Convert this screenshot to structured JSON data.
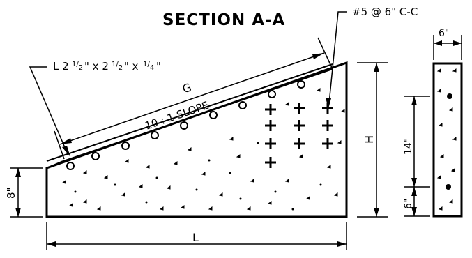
{
  "title": "SECTION A-A",
  "labels": {
    "rebar_note": "#5 @ 6\" C-C",
    "angle_note": "L 2",
    "angle_frac1_num": "1",
    "angle_frac1_den": "2",
    "angle_mid": "\" x 2",
    "angle_frac2_num": "1",
    "angle_frac2_den": "2",
    "angle_mid2": "\" x ",
    "angle_frac3_num": "1",
    "angle_frac3_den": "4",
    "angle_end": "\"",
    "slope_label": "10 : 1 SLOPE",
    "g_label": "G",
    "h_label": "H",
    "l_label": "L",
    "left_height": "8\"",
    "side_width": "6\"",
    "side_upper": "14\"",
    "side_lower": "6\""
  },
  "colors": {
    "ink": "#000000",
    "background": "#ffffff"
  }
}
